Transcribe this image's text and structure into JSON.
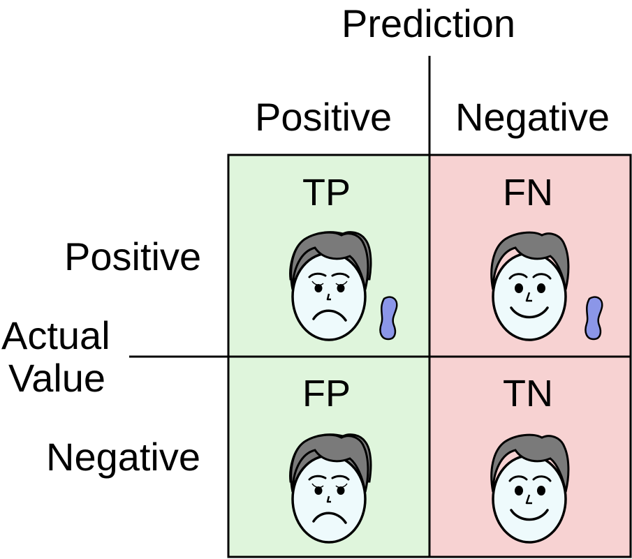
{
  "title": "Prediction",
  "column_labels": {
    "positive": "Positive",
    "negative": "Negative"
  },
  "row_labels": {
    "positive": "Positive",
    "negative": "Negative"
  },
  "row_axis_label": {
    "line1": "Actual",
    "line2": "Value"
  },
  "cells": [
    {
      "code": "TP",
      "face": "sad-face-icon",
      "tear": true
    },
    {
      "code": "FN",
      "face": "happy-face-icon",
      "tear": true
    },
    {
      "code": "FP",
      "face": "sad-face-icon",
      "tear": false
    },
    {
      "code": "TN",
      "face": "happy-face-icon",
      "tear": false
    }
  ],
  "colors": {
    "positive_prediction_fill": "#dff5dc",
    "negative_prediction_fill": "#f7d2d2",
    "face_skin": "#eefafc",
    "hair": "#7a7a7a",
    "tear": "#8b96e8"
  }
}
